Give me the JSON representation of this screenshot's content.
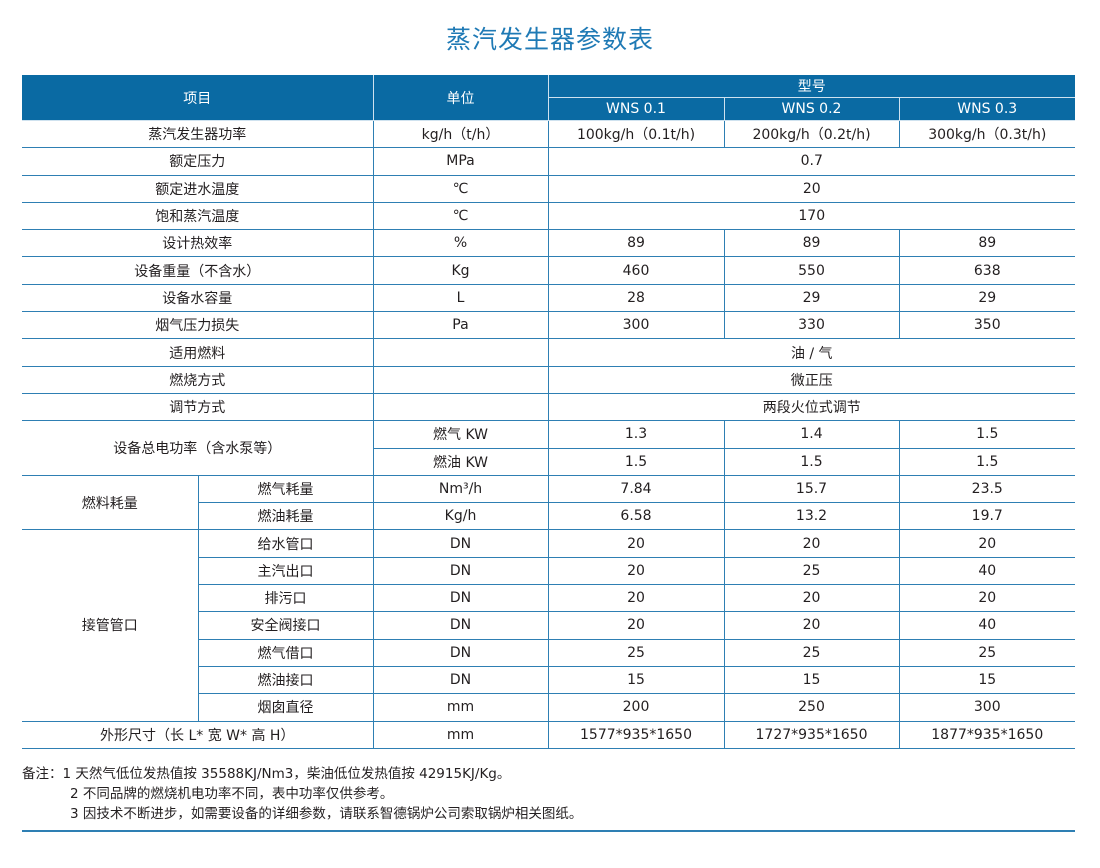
{
  "title": "蒸汽发生器参数表",
  "header": {
    "item": "项目",
    "unit": "单位",
    "model": "型号",
    "models": [
      "WNS 0.1",
      "WNS 0.2",
      "WNS 0.3"
    ]
  },
  "rows": [
    {
      "item": "蒸汽发生器功率",
      "unit": "kg/h（t/h）",
      "values": [
        "100kg/h（0.1t/h)",
        "200kg/h（0.2t/h)",
        "300kg/h（0.3t/h)"
      ]
    },
    {
      "item": "额定压力",
      "unit": "MPa",
      "values": [
        "0.7"
      ]
    },
    {
      "item": "额定进水温度",
      "unit": "℃",
      "values": [
        "20"
      ]
    },
    {
      "item": "饱和蒸汽温度",
      "unit": "℃",
      "values": [
        "170"
      ]
    },
    {
      "item": "设计热效率",
      "unit": "%",
      "values": [
        "89",
        "89",
        "89"
      ]
    },
    {
      "item": "设备重量（不含水）",
      "unit": "Kg",
      "values": [
        "460",
        "550",
        "638"
      ]
    },
    {
      "item": "设备水容量",
      "unit": "L",
      "values": [
        "28",
        "29",
        "29"
      ]
    },
    {
      "item": "烟气压力损失",
      "unit": "Pa",
      "values": [
        "300",
        "330",
        "350"
      ]
    },
    {
      "item": "适用燃料",
      "unit": "",
      "values": [
        "油 / 气"
      ]
    },
    {
      "item": "燃烧方式",
      "unit": "",
      "values": [
        "微正压"
      ]
    },
    {
      "item": "调节方式",
      "unit": "",
      "values": [
        "两段火位式调节"
      ]
    },
    {
      "group": "设备总电功率（含水泵等）",
      "items": [
        {
          "unit": "燃气 KW",
          "values": [
            "1.3",
            "1.4",
            "1.5"
          ]
        },
        {
          "unit": "燃油 KW",
          "values": [
            "1.5",
            "1.5",
            "1.5"
          ]
        }
      ]
    },
    {
      "group": "燃料耗量",
      "items": [
        {
          "item": "燃气耗量",
          "unit": "Nm³/h",
          "values": [
            "7.84",
            "15.7",
            "23.5"
          ]
        },
        {
          "item": "燃油耗量",
          "unit": "Kg/h",
          "values": [
            "6.58",
            "13.2",
            "19.7"
          ]
        }
      ]
    },
    {
      "group": "接管管口",
      "items": [
        {
          "item": "给水管口",
          "unit": "DN",
          "values": [
            "20",
            "20",
            "20"
          ]
        },
        {
          "item": "主汽出口",
          "unit": "DN",
          "values": [
            "20",
            "25",
            "40"
          ]
        },
        {
          "item": "排污口",
          "unit": "DN",
          "values": [
            "20",
            "20",
            "20"
          ]
        },
        {
          "item": "安全阀接口",
          "unit": "DN",
          "values": [
            "20",
            "20",
            "40"
          ]
        },
        {
          "item": "燃气借口",
          "unit": "DN",
          "values": [
            "25",
            "25",
            "25"
          ]
        },
        {
          "item": "燃油接口",
          "unit": "DN",
          "values": [
            "15",
            "15",
            "15"
          ]
        },
        {
          "item": "烟囱直径",
          "unit": "mm",
          "values": [
            "200",
            "250",
            "300"
          ]
        }
      ]
    },
    {
      "item": "外形尺寸（长 L* 宽 W* 高 H）",
      "unit": "mm",
      "values": [
        "1577*935*1650",
        "1727*935*1650",
        "1877*935*1650"
      ]
    }
  ],
  "notes": [
    "备注：1  天然气低位发热值按 35588KJ/Nm3，柴油低位发热值按 42915KJ/Kg。",
    "2  不同品牌的燃烧机电功率不同，表中功率仅供参考。",
    "3  因技术不断进步，如需要设备的详细参数，请联系智德锅炉公司索取锅炉相关图纸。"
  ]
}
